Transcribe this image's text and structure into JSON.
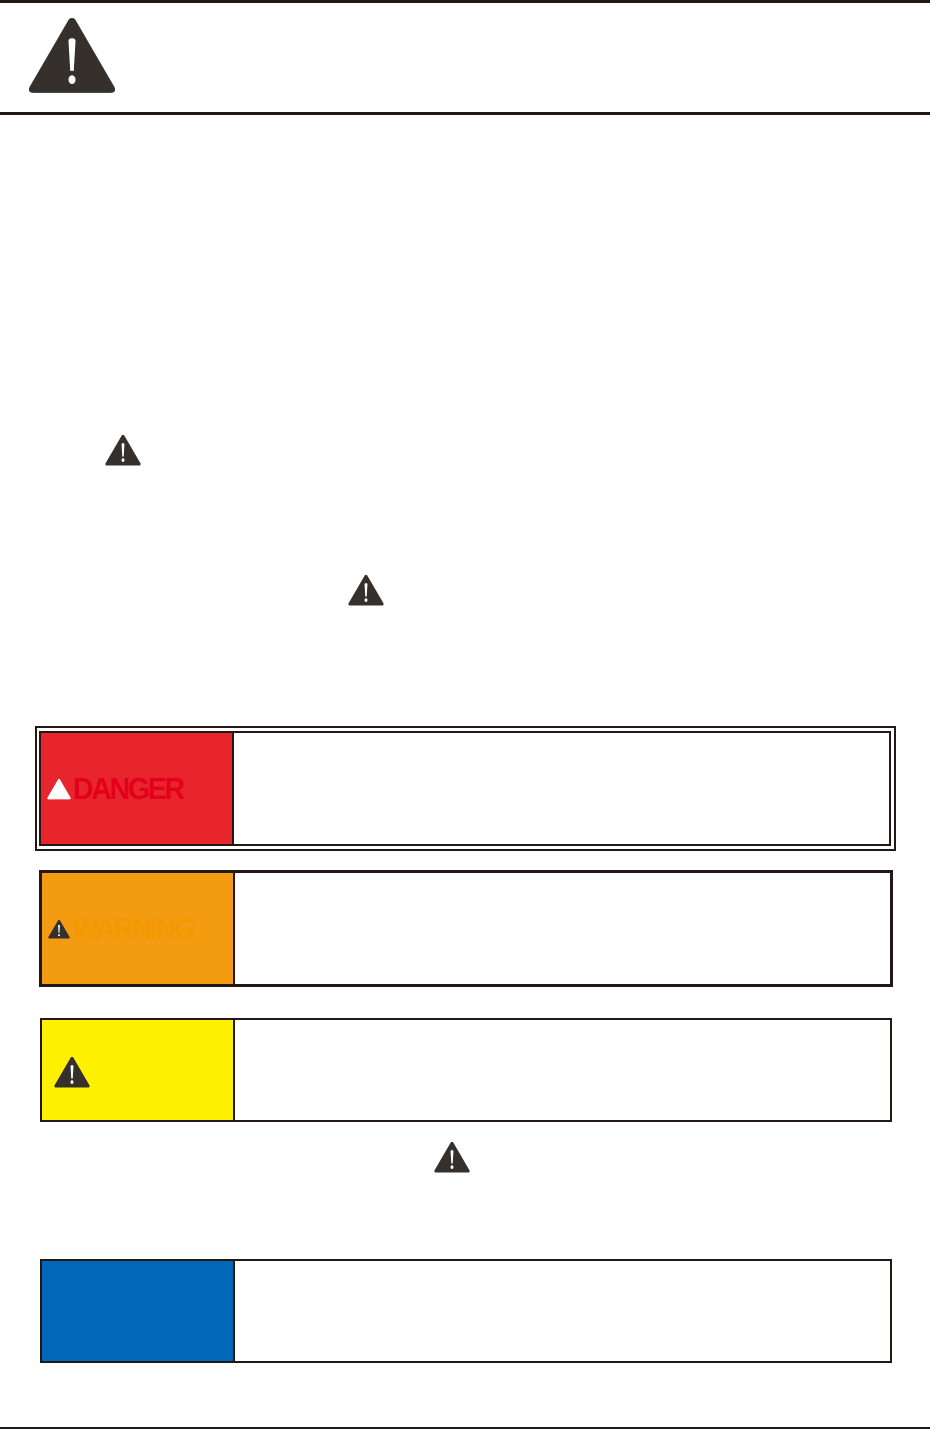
{
  "icons": {
    "header": "warning-triangle-icon",
    "inline": "warning-triangle-icon"
  },
  "signal_words": {
    "danger": {
      "label": "DANGER",
      "bg": "#e8242c",
      "text_color": "#e3001b"
    },
    "warning": {
      "label": "WARNING",
      "bg": "#f39c12",
      "text_color": "#f39800"
    },
    "caution": {
      "label": "",
      "bg": "#fff100"
    },
    "notice": {
      "label": "",
      "bg": "#0068b7"
    }
  },
  "colors": {
    "ink": "#231815",
    "icon": "#35302c"
  }
}
